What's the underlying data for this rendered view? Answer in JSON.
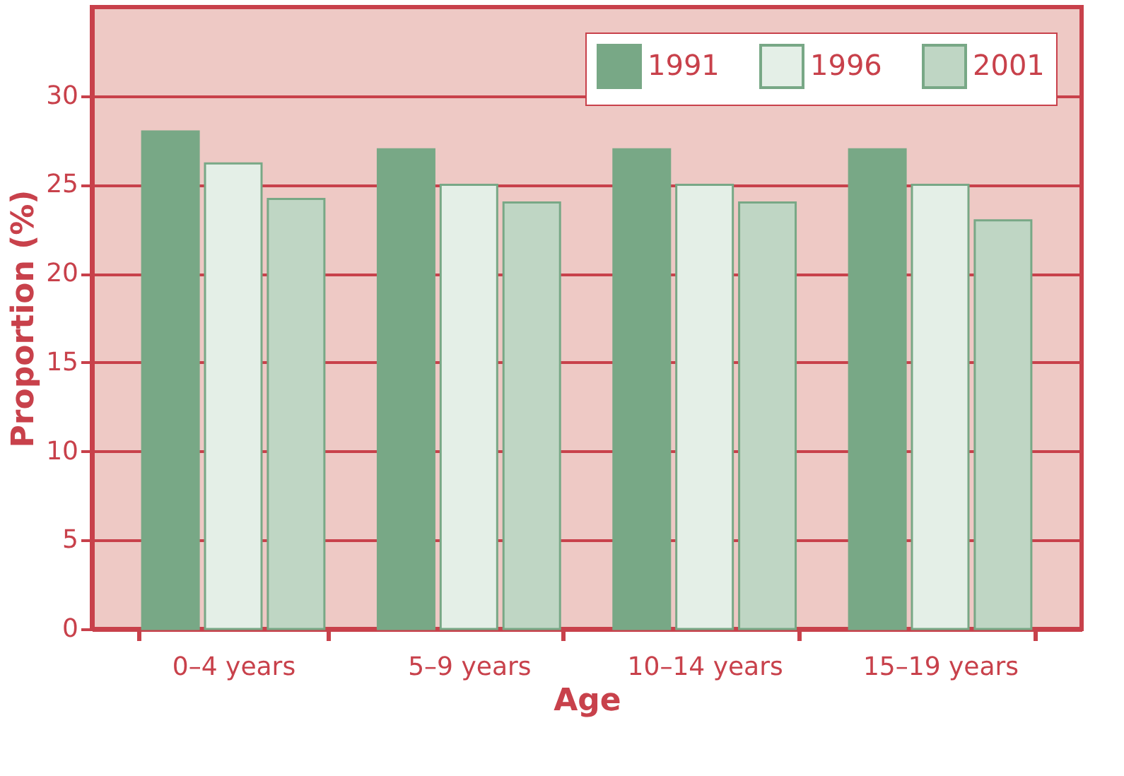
{
  "chart_data": {
    "type": "bar",
    "xlabel": "Age",
    "ylabel": "Proportion (%)",
    "categories": [
      "0–4 years",
      "5–9 years",
      "10–14 years",
      "15–19 years"
    ],
    "series": [
      {
        "name": "1991",
        "color": "#78a886",
        "values": [
          28,
          27,
          27,
          27
        ]
      },
      {
        "name": "1996",
        "color": "#e4efe7",
        "values": [
          26.2,
          25,
          25,
          25
        ]
      },
      {
        "name": "2001",
        "color": "#bfd6c4",
        "values": [
          24.2,
          24,
          24,
          23
        ]
      }
    ],
    "ylim": [
      0,
      35
    ],
    "yticks": [
      0,
      5,
      10,
      15,
      20,
      25,
      30
    ],
    "grid": "y",
    "legend": "top right"
  }
}
